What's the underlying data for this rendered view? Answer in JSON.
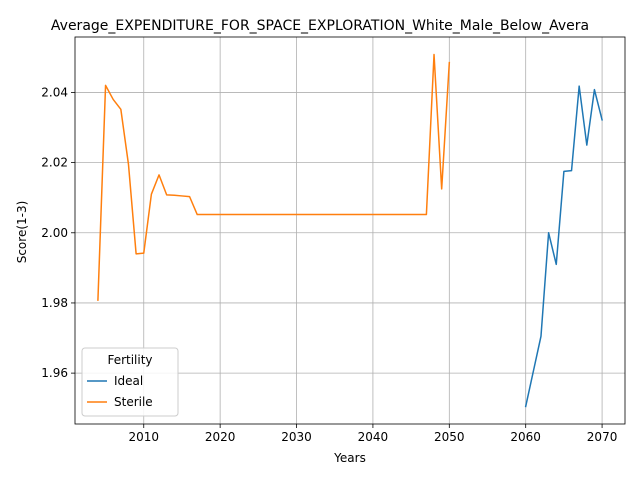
{
  "chart_data": {
    "type": "line",
    "title": "Average_EXPENDITURE_FOR_SPACE_EXPLORATION_White_Male_Below_Avera",
    "xlabel": "Years",
    "ylabel": "Score(1-3)",
    "xlim": [
      2001,
      2073
    ],
    "ylim": [
      1.9455,
      2.0558
    ],
    "xticks": [
      2010,
      2020,
      2030,
      2040,
      2050,
      2060,
      2070
    ],
    "yticks": [
      1.96,
      1.98,
      2.0,
      2.02,
      2.04
    ],
    "ytick_labels": [
      "1.96",
      "1.98",
      "2.00",
      "2.02",
      "2.04"
    ],
    "grid": true,
    "legend": {
      "title": "Fertility",
      "placement": "lower-left"
    },
    "series": [
      {
        "name": "Ideal",
        "color": "#1f77b4",
        "x": [
          2060,
          2061,
          2062,
          2063,
          2064,
          2065,
          2066,
          2067,
          2068,
          2069,
          2070
        ],
        "y": [
          1.9505,
          1.9605,
          1.9705,
          2.0,
          1.991,
          2.0175,
          2.0177,
          2.0418,
          2.025,
          2.0408,
          2.0322
        ]
      },
      {
        "name": "Sterile",
        "color": "#ff7f0e",
        "x": [
          2004,
          2005,
          2006,
          2007,
          2008,
          2009,
          2010,
          2011,
          2012,
          2013,
          2014,
          2015,
          2016,
          2017,
          2018,
          2020,
          2025,
          2030,
          2035,
          2040,
          2045,
          2047,
          2048,
          2049,
          2050
        ],
        "y": [
          1.9808,
          2.042,
          2.038,
          2.0352,
          2.0195,
          1.994,
          1.9942,
          2.011,
          2.0165,
          2.0108,
          2.0107,
          2.0105,
          2.0103,
          2.0052,
          2.0052,
          2.0052,
          2.0052,
          2.0052,
          2.0052,
          2.0052,
          2.0052,
          2.0052,
          2.0508,
          2.0125,
          2.0485
        ]
      }
    ]
  }
}
